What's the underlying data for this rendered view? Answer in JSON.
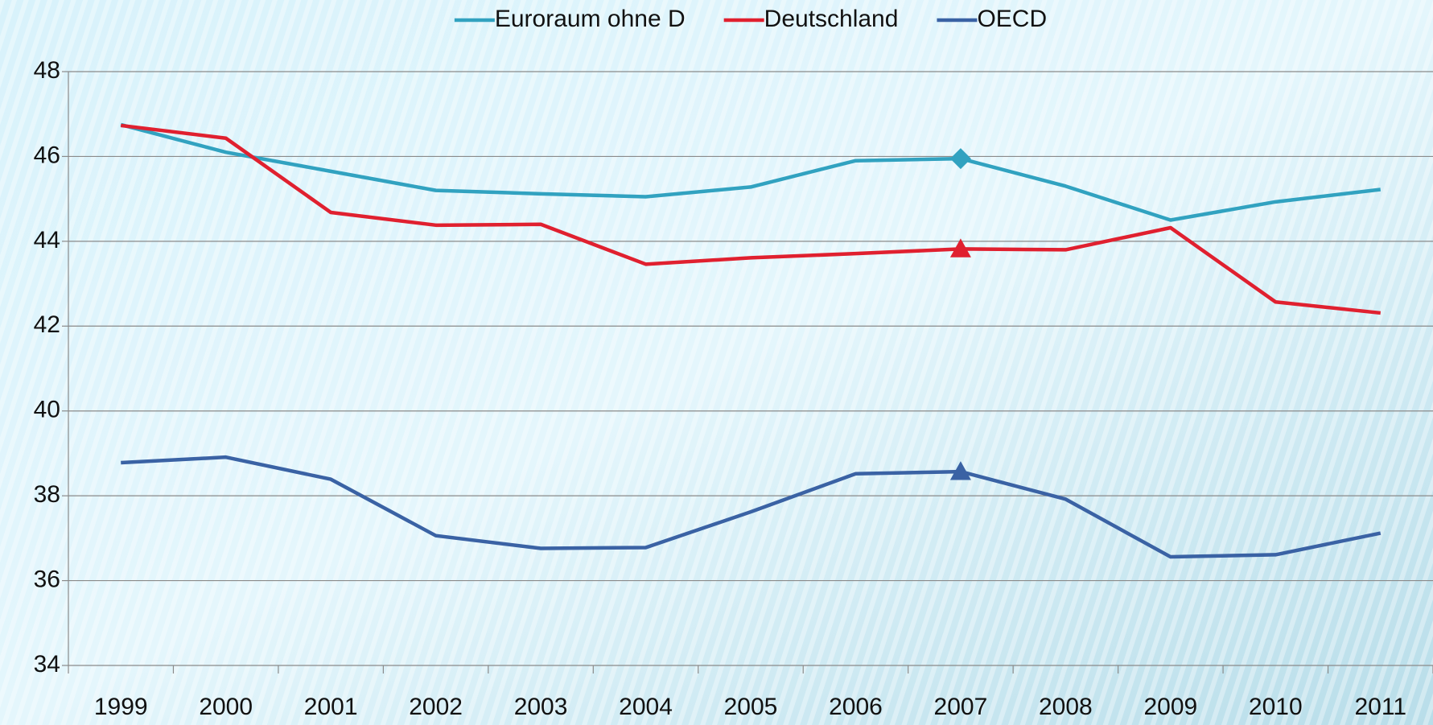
{
  "chart_data": {
    "type": "line",
    "categories": [
      "1999",
      "2000",
      "2001",
      "2002",
      "2003",
      "2004",
      "2005",
      "2006",
      "2007",
      "2008",
      "2009",
      "2010",
      "2011"
    ],
    "series": [
      {
        "name": "Euroraum ohne D",
        "color": "#31a2c0",
        "marker": "diamond",
        "values": [
          46.75,
          46.1,
          45.65,
          45.2,
          45.12,
          45.05,
          45.28,
          45.9,
          45.95,
          45.3,
          44.5,
          44.93,
          45.22
        ]
      },
      {
        "name": "Deutschland",
        "color": "#e0202f",
        "marker": "triangle",
        "values": [
          46.73,
          46.43,
          44.68,
          44.38,
          44.4,
          43.46,
          43.61,
          43.71,
          43.82,
          43.8,
          44.32,
          42.57,
          42.31
        ]
      },
      {
        "name": "OECD",
        "color": "#3a62a4",
        "marker": "triangle",
        "values": [
          38.78,
          38.91,
          38.39,
          37.06,
          36.76,
          36.78,
          37.62,
          38.52,
          38.57,
          37.92,
          36.56,
          36.61,
          37.12
        ]
      }
    ],
    "highlight": "2007",
    "ylim": [
      34,
      48
    ],
    "yticks": [
      34,
      36,
      38,
      40,
      42,
      44,
      46,
      48
    ],
    "grid": true,
    "legend": "top"
  }
}
